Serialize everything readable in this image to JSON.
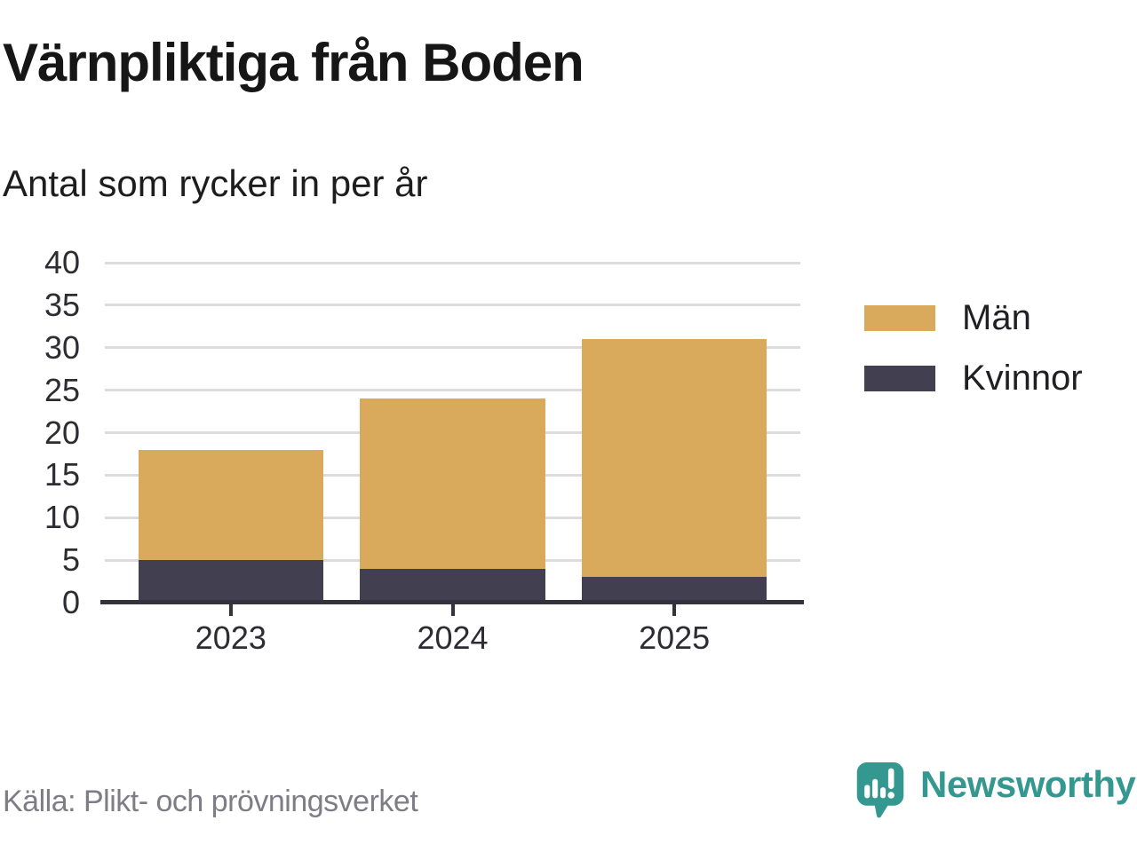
{
  "title": "Värnpliktiga från Boden",
  "subtitle": "Antal som rycker in per år",
  "source": "Källa: Plikt- och prövningsverket",
  "brand": {
    "name": "Newsworthy",
    "color": "#359890"
  },
  "legend": [
    {
      "label": "Män",
      "color": "#d9a95c"
    },
    {
      "label": "Kvinnor",
      "color": "#413f50"
    }
  ],
  "colors": {
    "axis_line": "#33323d",
    "gridline": "#dcdcdc",
    "tick_label": "#2d2c33",
    "source_text": "#7e7d85",
    "background": "#ffffff"
  },
  "chart_data": {
    "type": "bar",
    "stacked": true,
    "title": "Värnpliktiga från Boden",
    "subtitle": "Antal som rycker in per år",
    "categories": [
      "2023",
      "2024",
      "2025"
    ],
    "series": [
      {
        "name": "Kvinnor",
        "color": "#413f50",
        "values": [
          5,
          4,
          3
        ]
      },
      {
        "name": "Män",
        "color": "#d9a95c",
        "values": [
          13,
          20,
          28
        ]
      }
    ],
    "totals": [
      18,
      24,
      31
    ],
    "xlabel": "",
    "ylabel": "",
    "ylim": [
      0,
      40
    ],
    "y_ticks": [
      0,
      5,
      10,
      15,
      20,
      25,
      30,
      35,
      40
    ],
    "grid": true,
    "legend_position": "right",
    "legend_order": [
      "Män",
      "Kvinnor"
    ]
  }
}
